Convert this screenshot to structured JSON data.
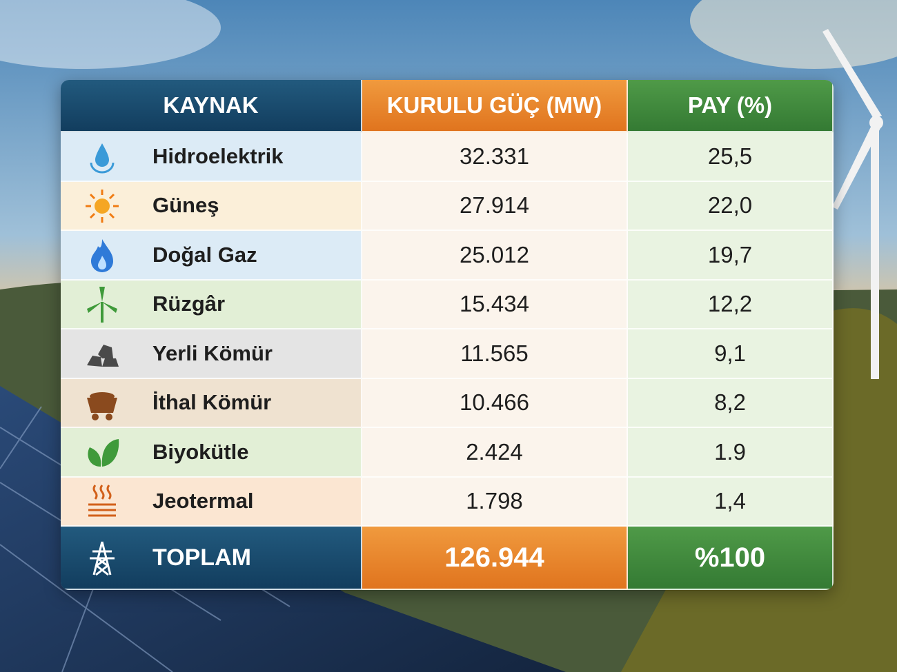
{
  "table": {
    "header": [
      "KAYNAK",
      "KURULU GÜÇ (MW)",
      "PAY (%)"
    ],
    "rows": [
      [
        "Hidroelektrik",
        "32.331",
        "25,5"
      ],
      [
        "Güneş",
        "27.914",
        "22,0"
      ],
      [
        "Doğal Gaz",
        "25.012",
        "19,7"
      ],
      [
        "Rüzgâr",
        "15.434",
        "12,2"
      ],
      [
        "Yerli Kömür",
        "11.565",
        "9,1"
      ],
      [
        "İthal Kömür",
        "10.466",
        "8,2"
      ],
      [
        "Biyokütle",
        "2.424",
        "1.9"
      ],
      [
        "Jeotermal",
        "1.798",
        "1,4"
      ]
    ],
    "total": [
      "TOPLAM",
      "126.944",
      "%100"
    ]
  }
}
